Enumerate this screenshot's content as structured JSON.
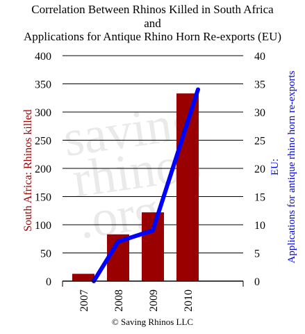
{
  "chart_data": {
    "type": "bar+line",
    "title_lines": [
      "Correlation Between Rhinos Killed in South Africa",
      "and",
      "Applications for Antique Rhino Horn Re-exports (EU)"
    ],
    "categories": [
      "2007",
      "2008",
      "2009",
      "2010"
    ],
    "left_axis": {
      "label": "South Africa: Rhinos killed",
      "range": [
        0,
        400
      ],
      "ticks": [
        "0",
        "50",
        "100",
        "150",
        "200",
        "250",
        "300",
        "350",
        "400"
      ]
    },
    "right_axis": {
      "label_lines": [
        "EU:",
        "Applications for antique rhino horn re-exports"
      ],
      "range": [
        0,
        40
      ],
      "ticks": [
        "0",
        "5",
        "10",
        "15",
        "20",
        "25",
        "30",
        "35",
        "40"
      ]
    },
    "bar_series": {
      "values": [
        13,
        83,
        122,
        333
      ],
      "color": "#990000"
    },
    "line_series": {
      "values": [
        0,
        7,
        9,
        34
      ],
      "color": "#0000ff"
    },
    "grid": true
  },
  "footer": "© Saving Rhinos LLC",
  "watermark_lines": [
    "saving",
    "rhinos",
    ".org"
  ]
}
